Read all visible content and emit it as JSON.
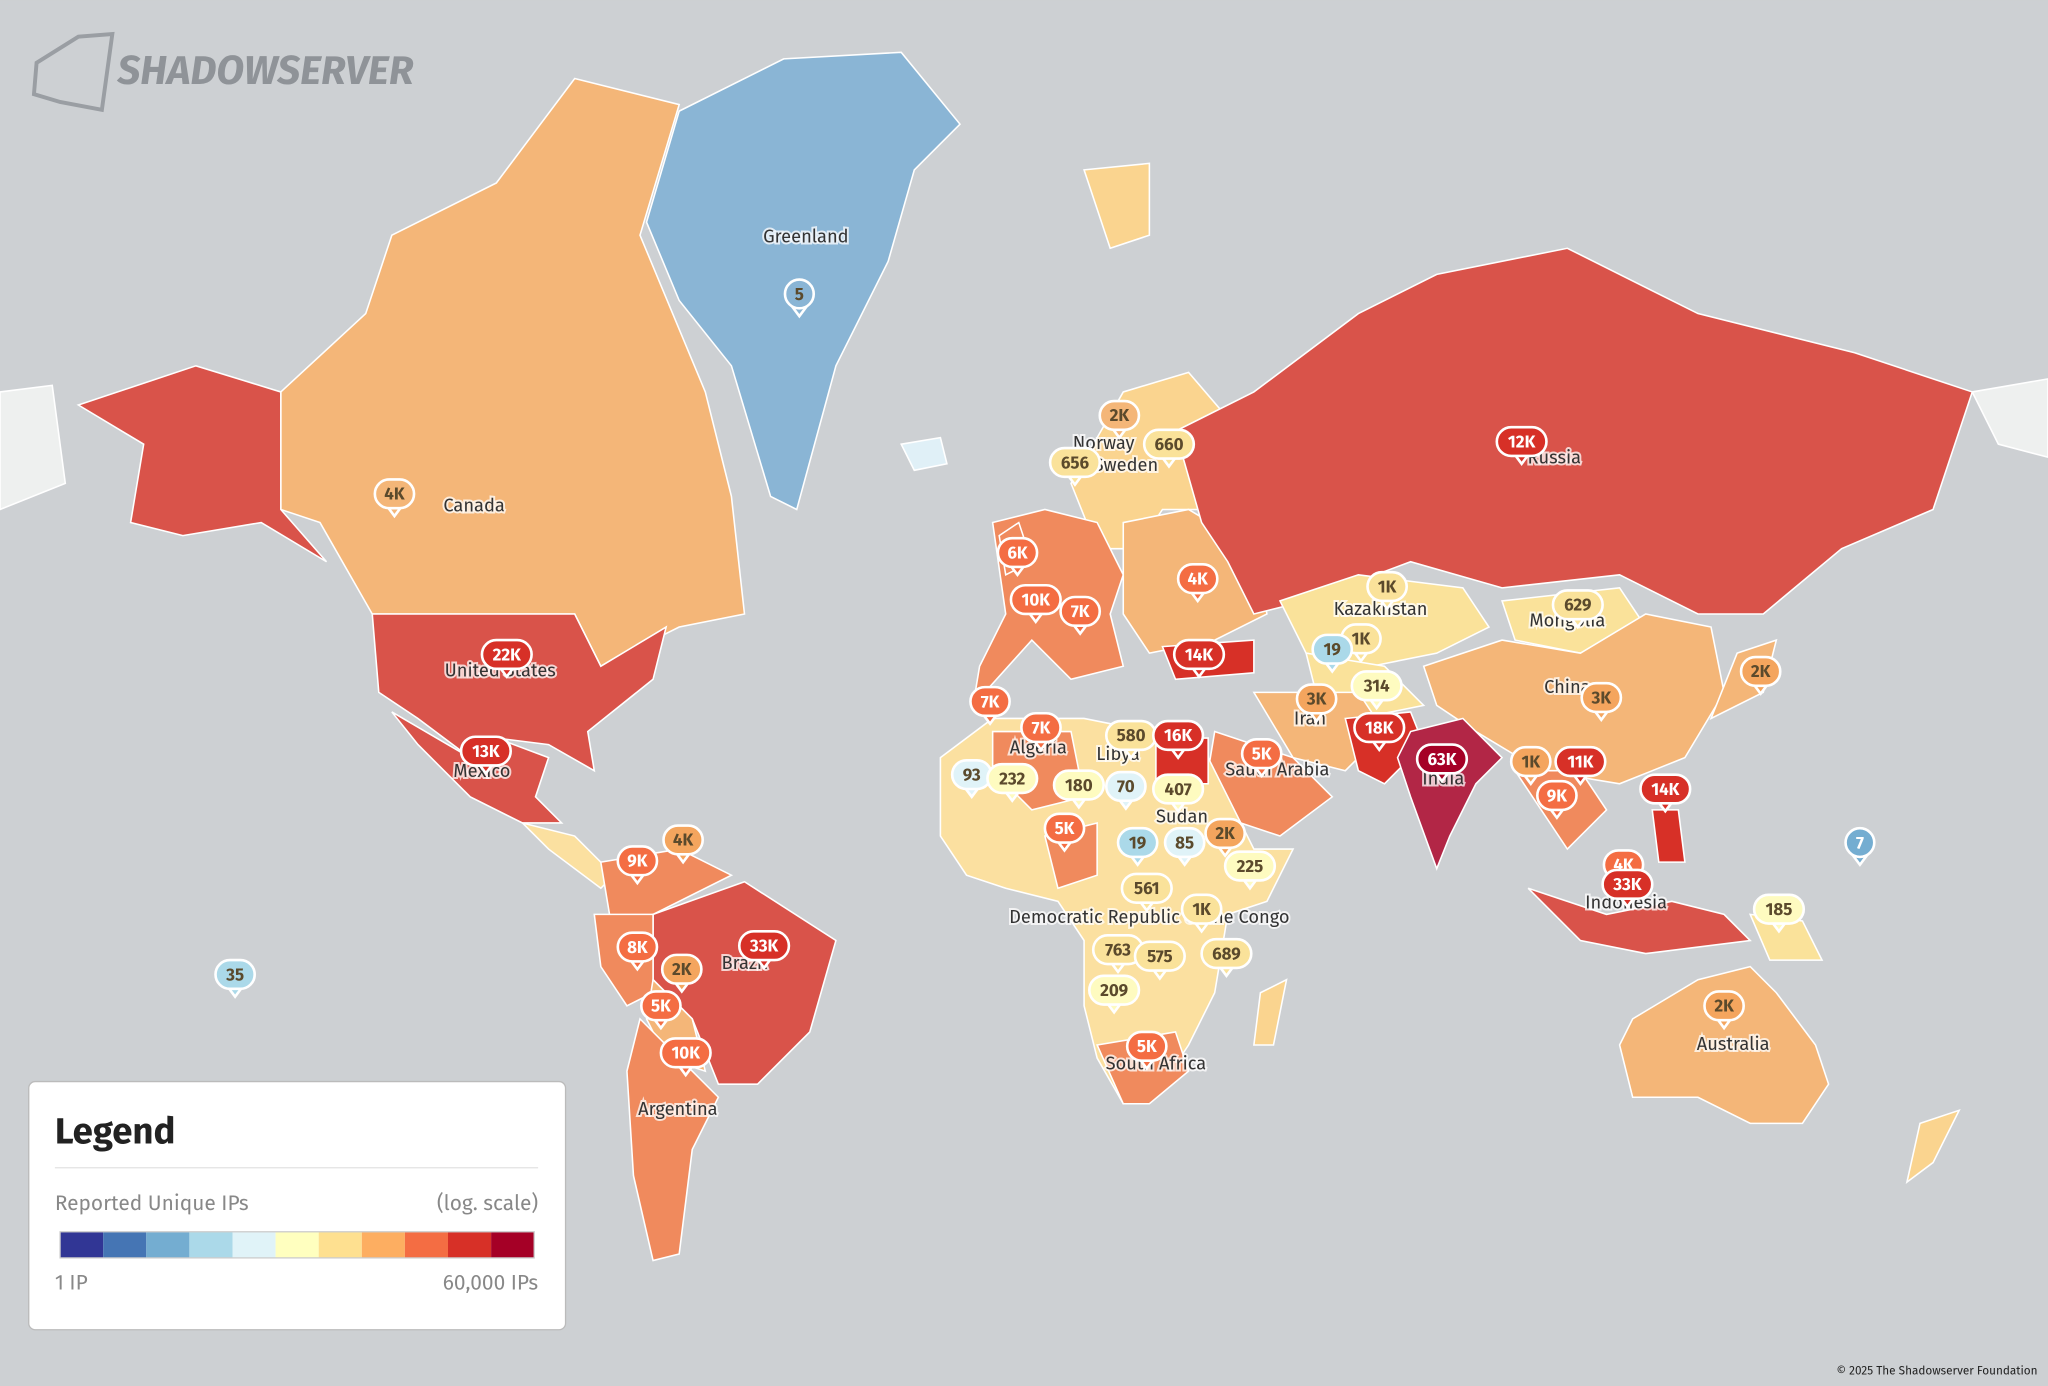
{
  "logo": "SHADOWSERVER",
  "countries": [
    "Greenland",
    "Canada",
    "United States",
    "Mexico",
    "Brazil",
    "Argentina",
    "Russia",
    "Kazakhstan",
    "Mongolia",
    "China",
    "Iran",
    "Saudi Arabia",
    "India",
    "Indonesia",
    "Australia",
    "South Africa",
    "Sudan",
    "Libya",
    "Algeria",
    "Democratic Republic of the Congo",
    "Norway",
    "Sweden"
  ],
  "markers": [
    {
      "label": "5",
      "color": "#8ab5d5"
    },
    {
      "label": "4K",
      "color": "#f4b678"
    },
    {
      "label": "22K",
      "color": "#d73027"
    },
    {
      "label": "13K",
      "color": "#d73027"
    },
    {
      "label": "12K",
      "color": "#d73027"
    },
    {
      "label": "2K",
      "color": "#f4b678"
    },
    {
      "label": "660",
      "color": "#fae29a"
    },
    {
      "label": "656",
      "color": "#fae29a"
    },
    {
      "label": "6K",
      "color": "#f46d43"
    },
    {
      "label": "10K",
      "color": "#f46d43"
    },
    {
      "label": "7K",
      "color": "#f46d43"
    },
    {
      "label": "4K",
      "color": "#f46d43"
    },
    {
      "label": "14K",
      "color": "#d73027"
    },
    {
      "label": "1K",
      "color": "#fae29a"
    },
    {
      "label": "629",
      "color": "#fae29a"
    },
    {
      "label": "1K",
      "color": "#fae29a"
    },
    {
      "label": "19",
      "color": "#abd9e9"
    },
    {
      "label": "314",
      "color": "#fefbc0"
    },
    {
      "label": "2K",
      "color": "#f4a55e"
    },
    {
      "label": "3K",
      "color": "#f4a55e"
    },
    {
      "label": "3K",
      "color": "#f4a55e"
    },
    {
      "label": "7K",
      "color": "#f46d43"
    },
    {
      "label": "7K",
      "color": "#f46d43"
    },
    {
      "label": "580",
      "color": "#fae29a"
    },
    {
      "label": "16K",
      "color": "#d73027"
    },
    {
      "label": "18K",
      "color": "#d73027"
    },
    {
      "label": "5K",
      "color": "#f46d43"
    },
    {
      "label": "63K",
      "color": "#a50026"
    },
    {
      "label": "1K",
      "color": "#f4a55e"
    },
    {
      "label": "11K",
      "color": "#d73027"
    },
    {
      "label": "14K",
      "color": "#d73027"
    },
    {
      "label": "9K",
      "color": "#f46d43"
    },
    {
      "label": "93",
      "color": "#e0f3f8"
    },
    {
      "label": "232",
      "color": "#fefbc0"
    },
    {
      "label": "180",
      "color": "#fefbc0"
    },
    {
      "label": "70",
      "color": "#e0f3f8"
    },
    {
      "label": "407",
      "color": "#fefbc0"
    },
    {
      "label": "5K",
      "color": "#f46d43"
    },
    {
      "label": "19",
      "color": "#abd9e9"
    },
    {
      "label": "85",
      "color": "#e0f3f8"
    },
    {
      "label": "2K",
      "color": "#f4a55e"
    },
    {
      "label": "225",
      "color": "#fefbc0"
    },
    {
      "label": "7",
      "color": "#74add1"
    },
    {
      "label": "4K",
      "color": "#f46d43"
    },
    {
      "label": "33K",
      "color": "#d73027"
    },
    {
      "label": "185",
      "color": "#fefbc0"
    },
    {
      "label": "9K",
      "color": "#f46d43"
    },
    {
      "label": "4K",
      "color": "#f4a55e"
    },
    {
      "label": "561",
      "color": "#fae29a"
    },
    {
      "label": "1K",
      "color": "#fae29a"
    },
    {
      "label": "8K",
      "color": "#f46d43"
    },
    {
      "label": "33K",
      "color": "#d73027"
    },
    {
      "label": "2K",
      "color": "#f4a55e"
    },
    {
      "label": "5K",
      "color": "#f46d43"
    },
    {
      "label": "763",
      "color": "#fae29a"
    },
    {
      "label": "575",
      "color": "#fae29a"
    },
    {
      "label": "689",
      "color": "#fae29a"
    },
    {
      "label": "209",
      "color": "#fefbc0"
    },
    {
      "label": "35",
      "color": "#abd9e9"
    },
    {
      "label": "2K",
      "color": "#f4a55e"
    },
    {
      "label": "10K",
      "color": "#f46d43"
    },
    {
      "label": "5K",
      "color": "#f46d43"
    }
  ],
  "legend": {
    "title": "Legend",
    "subtitle": "Reported Unique IPs",
    "scale_note": "(log. scale)",
    "min_label": "1 IP",
    "max_label": "60,000 IPs",
    "colors": [
      "#313695",
      "#4575b4",
      "#74add1",
      "#abd9e9",
      "#e0f3f8",
      "#ffffbf",
      "#fee090",
      "#fdae61",
      "#f46d43",
      "#d73027",
      "#a50026"
    ]
  },
  "footer": "© 2025 The Shadowserver Foundation"
}
